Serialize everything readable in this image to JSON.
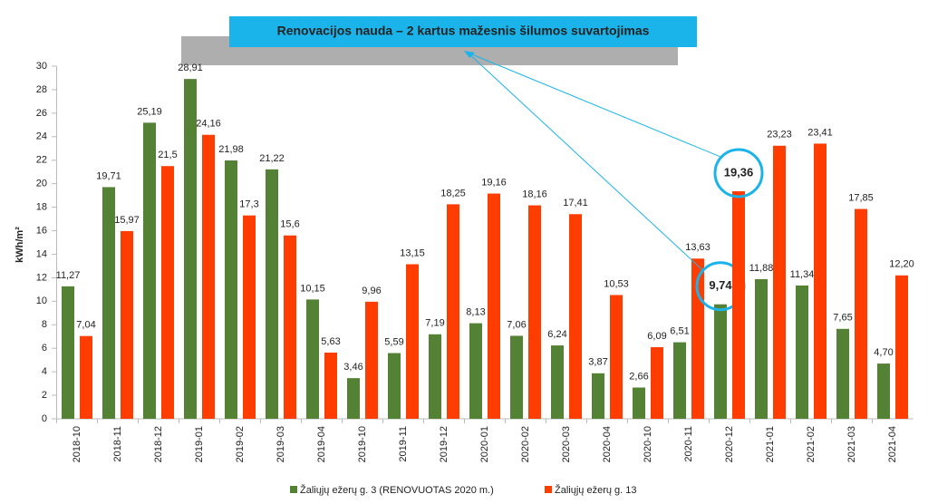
{
  "chart_data": {
    "type": "bar",
    "title": "Renovacijos nauda – 2 kartus mažesnis šilumos suvartojimas",
    "y_label": "kWh/m²",
    "categories": [
      "2018-10",
      "2018-11",
      "2018-12",
      "2019-01",
      "2019-02",
      "2019-03",
      "2019-04",
      "2019-10",
      "2019-11",
      "2019-12",
      "2020-01",
      "2020-02",
      "2020-03",
      "2020-04",
      "2020-10",
      "2020-11",
      "2020-12",
      "2021-01",
      "2021-02",
      "2021-03",
      "2021-04"
    ],
    "series": [
      {
        "name": "Žaliųjų ežerų g. 3 (RENOVUOTAS 2020 m.)",
        "color": "#548235",
        "values": [
          11.27,
          19.71,
          25.19,
          28.91,
          21.98,
          21.22,
          10.15,
          3.46,
          5.59,
          7.19,
          8.13,
          7.06,
          6.24,
          3.87,
          2.66,
          6.51,
          9.74,
          11.88,
          11.34,
          7.65,
          4.7
        ],
        "value_labels": [
          "11,27",
          "19,71",
          "25,19",
          "28,91",
          "21,98",
          "21,22",
          "10,15",
          "3,46",
          "5,59",
          "7,19",
          "8,13",
          "7,06",
          "6,24",
          "3,87",
          "2,66",
          "6,51",
          "9,74",
          "11,88",
          "11,34",
          "7,65",
          "4,70"
        ]
      },
      {
        "name": "Žaliųjų ežerų g. 13",
        "color": "#ff3d00",
        "values": [
          7.04,
          15.97,
          21.5,
          24.16,
          17.3,
          15.6,
          5.63,
          9.96,
          13.15,
          18.25,
          19.16,
          18.16,
          17.41,
          10.53,
          6.09,
          13.63,
          19.36,
          23.23,
          23.41,
          17.85,
          12.2
        ],
        "value_labels": [
          "7,04",
          "15,97",
          "21,5",
          "24,16",
          "17,3",
          "15,6",
          "5,63",
          "9,96",
          "13,15",
          "18,25",
          "19,16",
          "18,16",
          "17,41",
          "10,53",
          "6,09",
          "13,63",
          "19,36",
          "23,23",
          "23,41",
          "17,85",
          "12,20"
        ]
      }
    ],
    "ylim": [
      0,
      30
    ],
    "yticks": [
      0,
      2,
      4,
      6,
      8,
      10,
      12,
      14,
      16,
      18,
      20,
      22,
      24,
      26,
      28,
      30
    ],
    "grid": false,
    "legend": "bottom"
  }
}
